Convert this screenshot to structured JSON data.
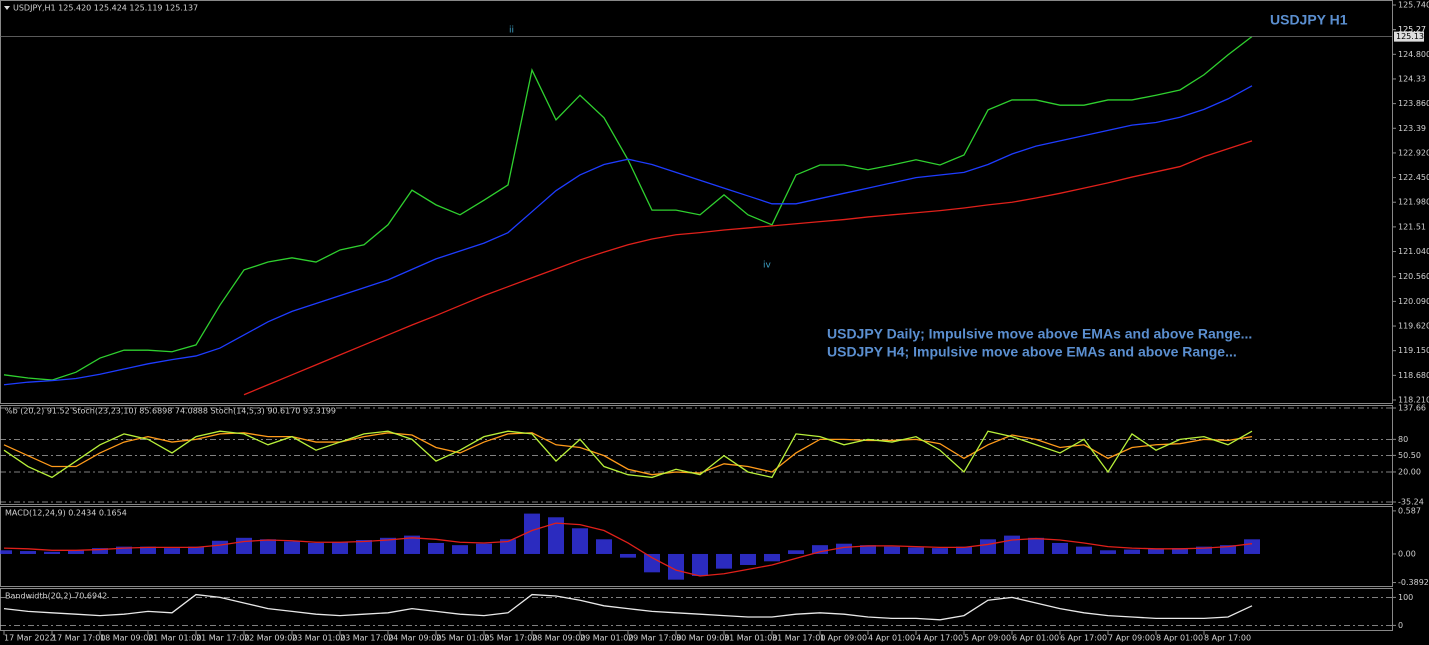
{
  "header": "USDJPY,H1  125.420 125.424 125.119 125.137",
  "symbol_label": "USDJPY H1",
  "annotations": [
    "USDJPY Daily; Impulsive move above EMAs and above Range...",
    "USDJPY H4; Impulsive move above EMAs and above Range..."
  ],
  "wave_labels": [
    "ii",
    "iv"
  ],
  "chart_data": [
    {
      "type": "line",
      "categories": [
        "17 Mar 2022",
        null,
        "17 Mar 17:00",
        null,
        "18 Mar 09:00",
        null,
        "21 Mar 01:00",
        null,
        "21 Mar 17:00",
        null,
        "22 Mar 09:00",
        null,
        "23 Mar 01:00",
        null,
        "23 Mar 17:00",
        null,
        "24 Mar 09:00",
        null,
        "25 Mar 01:00",
        null,
        "25 Mar 17:00",
        null,
        "28 Mar 09:00",
        null,
        "29 Mar 01:00",
        null,
        "29 Mar 17:00",
        null,
        "30 Mar 09:00",
        null,
        "31 Mar 01:00",
        null,
        "31 Mar 17:00",
        null,
        "1 Apr 09:00",
        null,
        "4 Apr 01:00",
        null,
        "4 Apr 17:00",
        null,
        "5 Apr 09:00",
        null,
        "6 Apr 01:00",
        null,
        "6 Apr 17:00",
        null,
        "7 Apr 09:00",
        null,
        "8 Apr 01:00",
        null,
        "8 Apr 17:00",
        null,
        null
      ],
      "series": [
        {
          "color": "#2fd02f",
          "values": [
            118.69,
            118.63,
            118.59,
            118.74,
            119.01,
            119.16,
            119.16,
            119.13,
            119.26,
            120.02,
            120.69,
            120.84,
            120.92,
            120.84,
            121.07,
            121.17,
            121.55,
            122.21,
            121.93,
            121.74,
            122.02,
            122.31,
            124.5,
            123.55,
            124.02,
            123.59,
            122.79,
            121.83,
            121.83,
            121.74,
            122.12,
            121.74,
            121.55,
            122.5,
            122.69,
            122.69,
            122.6,
            122.69,
            122.79,
            122.69,
            122.88,
            123.74,
            123.93,
            123.93,
            123.83,
            123.83,
            123.93,
            123.93,
            124.02,
            124.12,
            124.41,
            124.79,
            125.14
          ]
        },
        {
          "color": "#1e3cff",
          "values": [
            118.5,
            118.55,
            118.58,
            118.62,
            118.7,
            118.8,
            118.9,
            118.98,
            119.05,
            119.2,
            119.45,
            119.7,
            119.9,
            120.05,
            120.2,
            120.35,
            120.5,
            120.7,
            120.9,
            121.05,
            121.2,
            121.4,
            121.8,
            122.2,
            122.5,
            122.7,
            122.8,
            122.7,
            122.55,
            122.4,
            122.25,
            122.1,
            121.95,
            121.95,
            122.05,
            122.15,
            122.25,
            122.35,
            122.45,
            122.5,
            122.55,
            122.7,
            122.9,
            123.05,
            123.15,
            123.25,
            123.35,
            123.45,
            123.5,
            123.6,
            123.75,
            123.95,
            124.2
          ]
        },
        {
          "color": "#e0201a",
          "values": [
            null,
            null,
            null,
            null,
            null,
            null,
            null,
            null,
            null,
            null,
            118.31,
            118.5,
            118.69,
            118.88,
            119.07,
            119.26,
            119.45,
            119.64,
            119.82,
            120.01,
            120.2,
            120.37,
            120.54,
            120.71,
            120.88,
            121.03,
            121.17,
            121.28,
            121.36,
            121.4,
            121.45,
            121.49,
            121.53,
            121.57,
            121.61,
            121.65,
            121.7,
            121.74,
            121.78,
            121.82,
            121.87,
            121.93,
            121.98,
            122.06,
            122.15,
            122.25,
            122.35,
            122.46,
            122.56,
            122.66,
            122.85,
            123.0,
            123.15
          ]
        }
      ],
      "last_price": 125.137,
      "ylim": [
        118.21,
        125.74
      ],
      "yticks": [
        {
          "value": 125.74,
          "label": "125.740"
        },
        125.27,
        {
          "value": 124.8,
          "label": "124.800"
        },
        125.27,
        124.33,
        {
          "value": 123.86,
          "label": "123.860"
        },
        123.39,
        {
          "value": 122.92,
          "label": "122.920"
        },
        {
          "value": 122.45,
          "label": "122.450"
        },
        {
          "value": 121.98,
          "label": "121.980"
        },
        121.51,
        {
          "value": 121.04,
          "label": "121.040"
        },
        {
          "value": 120.56,
          "label": "120.560"
        },
        {
          "value": 120.09,
          "label": "120.090"
        },
        {
          "value": 119.62,
          "label": "119.620"
        },
        {
          "value": 119.15,
          "label": "119.150"
        },
        {
          "value": 118.68,
          "label": "118.680"
        },
        {
          "value": 118.21,
          "label": "118.210"
        }
      ],
      "grid": false
    },
    {
      "type": "line",
      "title": "%b (20,2) 91.52  Stoch(23,23,10) 85.6898 74.0888  Stoch(14,5,3) 90.6170 93.3199",
      "series": [
        {
          "color": "#ff9a1a",
          "values": [
            70,
            50,
            30,
            30,
            55,
            75,
            85,
            75,
            80,
            90,
            92,
            85,
            85,
            75,
            75,
            85,
            92,
            88,
            65,
            55,
            75,
            90,
            92,
            70,
            65,
            50,
            25,
            15,
            20,
            18,
            35,
            30,
            20,
            55,
            80,
            80,
            78,
            78,
            80,
            72,
            45,
            70,
            88,
            80,
            65,
            70,
            45,
            65,
            70,
            72,
            80,
            78,
            85
          ]
        },
        {
          "color": "#b8f03a",
          "values": [
            60,
            30,
            10,
            40,
            70,
            90,
            80,
            55,
            85,
            95,
            90,
            70,
            85,
            60,
            75,
            90,
            95,
            80,
            40,
            60,
            85,
            95,
            90,
            40,
            80,
            30,
            15,
            10,
            25,
            15,
            50,
            20,
            10,
            90,
            85,
            70,
            80,
            75,
            85,
            60,
            20,
            95,
            85,
            70,
            55,
            80,
            20,
            90,
            60,
            80,
            85,
            70,
            95
          ]
        }
      ],
      "ylim": [
        -35.24,
        137.66
      ],
      "yticks": [
        137.66,
        80,
        {
          "value": 50.5,
          "label": "50.50"
        },
        {
          "value": 20,
          "label": "20.00"
        },
        -35.24
      ],
      "grid": true
    },
    {
      "type": "bar",
      "title": "MACD(12,24,9) 0.2434 0.1654",
      "series": [
        {
          "kind": "bar",
          "color": "#3a3aff",
          "values": [
            0.05,
            0.04,
            0.03,
            0.05,
            0.08,
            0.1,
            0.1,
            0.08,
            0.1,
            0.18,
            0.22,
            0.2,
            0.17,
            0.15,
            0.16,
            0.19,
            0.22,
            0.25,
            0.15,
            0.12,
            0.14,
            0.2,
            0.55,
            0.5,
            0.35,
            0.2,
            -0.05,
            -0.25,
            -0.35,
            -0.3,
            -0.2,
            -0.15,
            -0.1,
            0.05,
            0.12,
            0.14,
            0.12,
            0.1,
            0.09,
            0.08,
            0.1,
            0.2,
            0.25,
            0.22,
            0.15,
            0.1,
            0.05,
            0.06,
            0.07,
            0.08,
            0.1,
            0.12,
            0.2
          ]
        },
        {
          "kind": "line",
          "color": "#e0201a",
          "values": [
            0.08,
            0.07,
            0.05,
            0.05,
            0.06,
            0.08,
            0.09,
            0.09,
            0.09,
            0.12,
            0.17,
            0.19,
            0.18,
            0.16,
            0.16,
            0.17,
            0.19,
            0.22,
            0.2,
            0.16,
            0.15,
            0.17,
            0.32,
            0.42,
            0.4,
            0.32,
            0.15,
            -0.05,
            -0.22,
            -0.3,
            -0.27,
            -0.21,
            -0.15,
            -0.06,
            0.03,
            0.09,
            0.11,
            0.11,
            0.1,
            0.09,
            0.09,
            0.13,
            0.19,
            0.21,
            0.19,
            0.15,
            0.1,
            0.08,
            0.07,
            0.07,
            0.08,
            0.1,
            0.14
          ]
        }
      ],
      "ylim": [
        -0.45,
        0.64
      ],
      "yticks": [
        0.587,
        {
          "value": 0,
          "label": "0.00"
        },
        -0.3892
      ],
      "grid": false
    },
    {
      "type": "line",
      "title": "Bandwidth(20,2) 70.6942",
      "series": [
        {
          "color": "#e8e8e8",
          "values": [
            60,
            50,
            45,
            40,
            35,
            40,
            50,
            45,
            110,
            100,
            80,
            60,
            50,
            40,
            35,
            40,
            45,
            60,
            50,
            40,
            35,
            45,
            110,
            105,
            90,
            70,
            60,
            50,
            45,
            40,
            35,
            30,
            30,
            40,
            45,
            40,
            30,
            25,
            25,
            20,
            35,
            90,
            100,
            80,
            60,
            45,
            35,
            30,
            25,
            25,
            25,
            30,
            70
          ]
        }
      ],
      "ylim": [
        -20,
        130
      ],
      "yticks": [
        100,
        0
      ],
      "grid": true
    }
  ]
}
